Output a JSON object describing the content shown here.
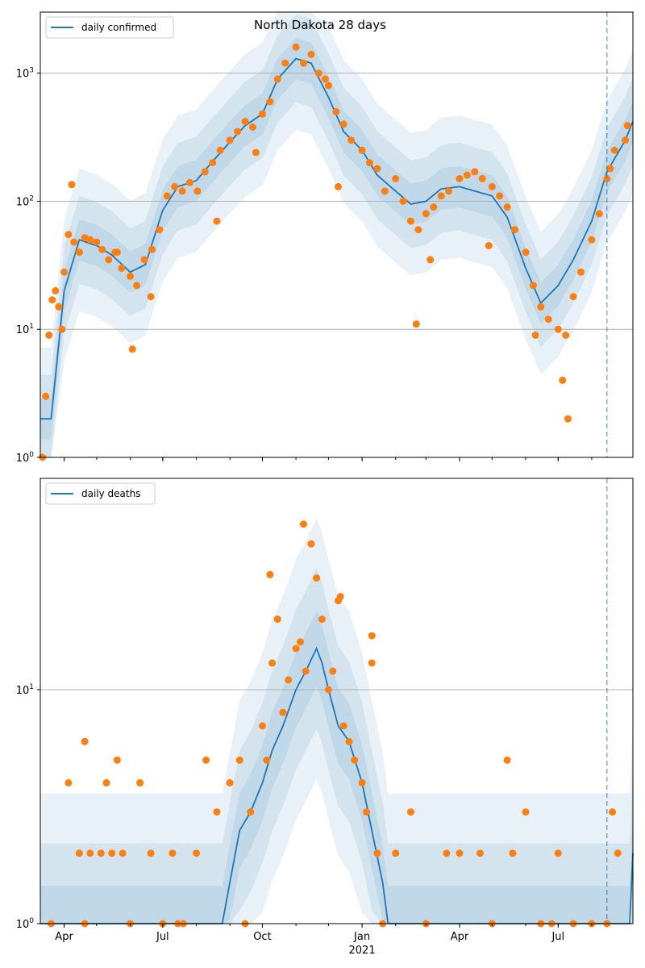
{
  "chart_data": [
    {
      "type": "line",
      "title": "North Dakota 28 days",
      "yscale": "log",
      "ylim": [
        1,
        3000
      ],
      "xlim": [
        "2020-03-10",
        "2021-09-08"
      ],
      "grid": "y-major",
      "legend_placement": "top-left",
      "series": [
        {
          "name": "daily confirmed",
          "x": [
            "2020-03-10",
            "2020-03-20",
            "2020-04-01",
            "2020-04-15",
            "2020-05-01",
            "2020-05-15",
            "2020-06-01",
            "2020-06-15",
            "2020-07-01",
            "2020-07-15",
            "2020-08-01",
            "2020-08-15",
            "2020-09-01",
            "2020-09-15",
            "2020-10-01",
            "2020-10-15",
            "2020-11-01",
            "2020-11-15",
            "2020-12-01",
            "2020-12-15",
            "2021-01-01",
            "2021-01-15",
            "2021-02-01",
            "2021-02-15",
            "2021-03-01",
            "2021-03-15",
            "2021-04-01",
            "2021-04-15",
            "2021-05-01",
            "2021-05-15",
            "2021-06-01",
            "2021-06-15",
            "2021-07-01",
            "2021-07-15",
            "2021-08-01",
            "2021-08-15",
            "2021-09-01",
            "2021-09-08"
          ],
          "y": [
            2,
            2,
            20,
            50,
            45,
            38,
            28,
            32,
            85,
            130,
            145,
            200,
            290,
            390,
            480,
            900,
            1300,
            1200,
            650,
            350,
            250,
            160,
            120,
            95,
            100,
            125,
            130,
            120,
            110,
            75,
            30,
            16,
            22,
            35,
            70,
            170,
            300,
            420
          ]
        }
      ],
      "observed": {
        "x": [
          "2020-03-12",
          "2020-03-15",
          "2020-03-18",
          "2020-03-21",
          "2020-03-24",
          "2020-03-27",
          "2020-04-01",
          "2020-04-05",
          "2020-04-10",
          "2020-04-15",
          "2020-04-20",
          "2020-04-25",
          "2020-05-01",
          "2020-05-06",
          "2020-05-12",
          "2020-05-18",
          "2020-05-24",
          "2020-06-01",
          "2020-06-07",
          "2020-06-14",
          "2020-06-21",
          "2020-06-28",
          "2020-07-05",
          "2020-07-12",
          "2020-07-19",
          "2020-07-26",
          "2020-08-02",
          "2020-08-09",
          "2020-08-16",
          "2020-08-23",
          "2020-09-01",
          "2020-09-08",
          "2020-09-15",
          "2020-09-22",
          "2020-10-01",
          "2020-10-08",
          "2020-10-15",
          "2020-10-22",
          "2020-11-01",
          "2020-11-08",
          "2020-11-15",
          "2020-11-22",
          "2020-12-01",
          "2020-12-08",
          "2020-12-15",
          "2020-12-22",
          "2021-01-01",
          "2021-01-08",
          "2021-01-15",
          "2021-01-22",
          "2021-02-01",
          "2021-02-08",
          "2021-02-15",
          "2021-02-22",
          "2021-03-01",
          "2021-03-08",
          "2021-03-15",
          "2021-03-22",
          "2021-04-01",
          "2021-04-08",
          "2021-04-15",
          "2021-04-22",
          "2021-05-01",
          "2021-05-08",
          "2021-05-15",
          "2021-05-22",
          "2021-06-01",
          "2021-06-08",
          "2021-06-15",
          "2021-06-22",
          "2021-07-01",
          "2021-07-08",
          "2021-07-15",
          "2021-07-22",
          "2021-08-01",
          "2021-08-08",
          "2021-08-15",
          "2021-08-22",
          "2021-09-01",
          "2020-03-30",
          "2020-06-03",
          "2020-06-20",
          "2020-12-10",
          "2021-02-20",
          "2021-07-05",
          "2021-07-10",
          "2020-04-08",
          "2020-05-20",
          "2020-08-20",
          "2020-09-25",
          "2020-11-28",
          "2021-03-05",
          "2021-04-28",
          "2021-06-10",
          "2021-08-18",
          "2021-09-03"
        ],
        "y": [
          1,
          3,
          9,
          17,
          20,
          15,
          28,
          55,
          48,
          40,
          52,
          50,
          48,
          42,
          35,
          40,
          30,
          26,
          22,
          35,
          42,
          60,
          110,
          130,
          120,
          140,
          120,
          170,
          200,
          250,
          300,
          350,
          420,
          380,
          480,
          600,
          900,
          1200,
          1600,
          1200,
          1400,
          1000,
          800,
          500,
          400,
          300,
          250,
          200,
          180,
          120,
          150,
          100,
          70,
          60,
          80,
          90,
          110,
          120,
          150,
          160,
          170,
          150,
          130,
          110,
          90,
          60,
          40,
          22,
          15,
          12,
          10,
          9,
          18,
          28,
          50,
          80,
          150,
          250,
          300,
          10,
          7,
          18,
          130,
          11,
          4,
          2,
          135,
          40,
          70,
          240,
          900,
          35,
          45,
          9,
          180,
          390
        ],
        "marker": "circle",
        "color": "#ff7f0e"
      },
      "forecast_start": "2021-08-15",
      "xticks": [
        "Apr",
        "Jul",
        "Oct",
        "Jan",
        "Apr",
        "Jul"
      ],
      "xticks_year_label": "2021",
      "yticks": [
        "10^0",
        "10^1",
        "10^2",
        "10^3"
      ]
    },
    {
      "type": "line",
      "title": "",
      "yscale": "log",
      "ylim": [
        1,
        80
      ],
      "xlim": [
        "2020-03-10",
        "2021-09-08"
      ],
      "grid": "y-major",
      "legend_placement": "top-left",
      "series": [
        {
          "name": "daily deaths",
          "x": [
            "2020-03-10",
            "2020-08-25",
            "2020-09-01",
            "2020-09-10",
            "2020-09-20",
            "2020-10-01",
            "2020-10-10",
            "2020-10-20",
            "2020-11-01",
            "2020-11-10",
            "2020-11-20",
            "2020-11-25",
            "2020-12-01",
            "2020-12-10",
            "2020-12-20",
            "2021-01-01",
            "2021-01-10",
            "2021-01-20",
            "2021-01-25",
            "2021-09-05",
            "2021-09-08"
          ],
          "y": [
            1,
            1,
            1.5,
            2.5,
            3,
            4,
            5.5,
            7,
            10,
            12,
            15,
            13,
            10,
            7,
            6,
            4,
            2.5,
            1.5,
            1,
            1,
            2
          ]
        }
      ],
      "observed": {
        "x": [
          "2020-03-20",
          "2020-04-05",
          "2020-04-15",
          "2020-04-20",
          "2020-04-25",
          "2020-05-05",
          "2020-05-10",
          "2020-05-15",
          "2020-05-20",
          "2020-06-01",
          "2020-06-10",
          "2020-06-20",
          "2020-07-01",
          "2020-07-10",
          "2020-07-20",
          "2020-08-01",
          "2020-08-10",
          "2020-08-20",
          "2020-09-01",
          "2020-09-10",
          "2020-09-20",
          "2020-10-01",
          "2020-10-05",
          "2020-10-10",
          "2020-10-15",
          "2020-10-20",
          "2020-10-25",
          "2020-11-01",
          "2020-11-05",
          "2020-11-10",
          "2020-11-15",
          "2020-11-20",
          "2020-11-25",
          "2020-12-01",
          "2020-12-05",
          "2020-12-10",
          "2020-12-15",
          "2020-12-20",
          "2020-12-25",
          "2021-01-01",
          "2021-01-05",
          "2021-01-10",
          "2021-01-15",
          "2021-01-20",
          "2021-02-01",
          "2021-02-15",
          "2021-03-01",
          "2021-03-20",
          "2021-04-01",
          "2021-04-20",
          "2021-05-01",
          "2021-05-20",
          "2021-06-01",
          "2021-06-15",
          "2021-07-01",
          "2021-07-15",
          "2021-08-01",
          "2021-08-15",
          "2021-08-20",
          "2020-04-20",
          "2020-05-25",
          "2020-07-15",
          "2020-09-15",
          "2020-10-08",
          "2020-11-08",
          "2020-12-12",
          "2021-01-10",
          "2021-05-15",
          "2021-06-25",
          "2021-08-25"
        ],
        "y": [
          1,
          4,
          2,
          6,
          2,
          2,
          4,
          2,
          5,
          1,
          4,
          2,
          1,
          2,
          1,
          2,
          5,
          3,
          4,
          5,
          3,
          7,
          5,
          13,
          20,
          8,
          11,
          15,
          16,
          12,
          42,
          30,
          20,
          10,
          12,
          24,
          7,
          6,
          5,
          4,
          3,
          13,
          2,
          1,
          2,
          3,
          1,
          2,
          2,
          2,
          1,
          2,
          3,
          1,
          2,
          1,
          1,
          1,
          3,
          1,
          2,
          1,
          1,
          31,
          51,
          25,
          17,
          5,
          1,
          2
        ],
        "marker": "circle",
        "color": "#ff7f0e"
      },
      "forecast_start": "2021-08-15",
      "xticks": [
        "Apr",
        "Jul",
        "Oct",
        "Jan",
        "Apr",
        "Jul"
      ],
      "xticks_year_label": "2021",
      "yticks": [
        "10^0",
        "10^1"
      ]
    }
  ]
}
